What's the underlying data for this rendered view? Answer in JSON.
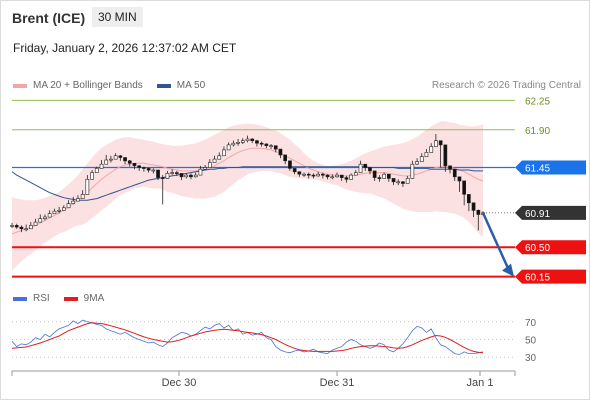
{
  "header": {
    "instrument": "Brent (ICE)",
    "timeframe": "30 MIN",
    "datetime": "Friday, January 2, 2026 12:37:02 AM CET",
    "credit": "Research © 2026 Trading Central"
  },
  "legend": {
    "ma20_label": "MA 20 + Bollinger Bands",
    "ma50_label": "MA 50",
    "rsi_label": "RSI",
    "rsi_ma_label": "9MA"
  },
  "colors": {
    "ma20": "#f4a6a6",
    "ma50": "#2f5597",
    "band_fill": "#fbe1e1",
    "resistance": "#1a73e8",
    "support": "#ee1111",
    "target_line": "#8bc34a",
    "up_candle": "#ffffff",
    "down_candle": "#111111",
    "arrow": "#2b5ea8",
    "rsi": "#4a6fd8",
    "rsi_ma": "#e02020"
  },
  "chart_data": [
    {
      "type": "candlestick",
      "x_ticks": [
        "Dec 30",
        "Dec 31",
        "Jan 1"
      ],
      "ylim": [
        60.05,
        62.35
      ],
      "current_price": 60.91,
      "levels": [
        {
          "label": "62.25",
          "value": 62.25,
          "kind": "target"
        },
        {
          "label": "61.90",
          "value": 61.9,
          "kind": "target"
        },
        {
          "label": "61.45",
          "value": 61.45,
          "kind": "pivot"
        },
        {
          "label": "60.91",
          "value": 60.91,
          "kind": "current"
        },
        {
          "label": "60.50",
          "value": 60.5,
          "kind": "support"
        },
        {
          "label": "60.15",
          "value": 60.15,
          "kind": "support"
        }
      ],
      "close": [
        60.76,
        60.74,
        60.72,
        60.72,
        60.76,
        60.8,
        60.84,
        60.86,
        60.9,
        60.93,
        60.94,
        60.97,
        61.02,
        61.05,
        61.08,
        61.13,
        61.31,
        61.39,
        61.44,
        61.49,
        61.54,
        61.55,
        61.59,
        61.57,
        61.53,
        61.5,
        61.47,
        61.45,
        61.44,
        61.42,
        61.42,
        61.33,
        61.32,
        61.38,
        61.39,
        61.38,
        61.34,
        61.36,
        61.34,
        61.36,
        61.43,
        61.45,
        61.51,
        61.55,
        61.59,
        61.66,
        61.72,
        61.74,
        61.75,
        61.77,
        61.79,
        61.77,
        61.74,
        61.73,
        61.71,
        61.71,
        61.67,
        61.6,
        61.53,
        61.44,
        61.4,
        61.37,
        61.37,
        61.36,
        61.35,
        61.37,
        61.36,
        61.34,
        61.34,
        61.36,
        61.33,
        61.31,
        61.36,
        61.39,
        61.49,
        61.45,
        61.41,
        61.33,
        61.32,
        61.37,
        61.32,
        61.28,
        61.28,
        61.26,
        61.32,
        61.49,
        61.52,
        61.58,
        61.63,
        61.7,
        61.77,
        61.72,
        61.47,
        61.43,
        61.34,
        61.29,
        61.13,
        61.03,
        60.94,
        60.89,
        60.91
      ],
      "high": [
        60.79,
        60.78,
        60.76,
        60.77,
        60.8,
        60.84,
        60.89,
        60.89,
        60.94,
        60.96,
        60.98,
        61.0,
        61.06,
        61.1,
        61.12,
        61.18,
        61.36,
        61.42,
        61.46,
        61.54,
        61.6,
        61.59,
        61.62,
        61.6,
        61.56,
        61.54,
        61.5,
        61.48,
        61.46,
        61.45,
        61.44,
        61.36,
        61.36,
        61.41,
        61.43,
        61.41,
        61.37,
        61.38,
        61.38,
        61.39,
        61.47,
        61.48,
        61.55,
        61.59,
        61.63,
        61.7,
        61.75,
        61.77,
        61.79,
        61.8,
        61.83,
        61.8,
        61.78,
        61.76,
        61.74,
        61.73,
        61.7,
        61.63,
        61.57,
        61.47,
        61.43,
        61.4,
        61.39,
        61.39,
        61.38,
        61.4,
        61.39,
        61.37,
        61.37,
        61.39,
        61.36,
        61.35,
        61.38,
        61.42,
        61.53,
        61.48,
        61.44,
        61.36,
        61.36,
        61.39,
        61.35,
        61.3,
        61.31,
        61.29,
        61.35,
        61.53,
        61.56,
        61.62,
        61.67,
        61.74,
        61.85,
        61.76,
        61.49,
        61.46,
        61.37,
        61.33,
        61.18,
        61.07,
        60.98,
        60.95,
        60.93
      ],
      "low": [
        60.73,
        60.72,
        60.68,
        60.69,
        60.73,
        60.77,
        60.81,
        60.82,
        60.87,
        60.9,
        60.9,
        60.94,
        60.98,
        61.01,
        61.05,
        61.09,
        61.27,
        61.35,
        61.4,
        61.45,
        61.5,
        61.51,
        61.55,
        61.53,
        61.49,
        61.46,
        61.43,
        61.41,
        61.4,
        61.39,
        61.38,
        61.3,
        61.01,
        61.35,
        61.36,
        61.35,
        61.3,
        61.32,
        61.31,
        61.33,
        61.39,
        61.42,
        61.48,
        61.51,
        61.55,
        61.62,
        61.68,
        61.7,
        61.71,
        61.73,
        61.75,
        61.74,
        61.7,
        61.7,
        61.68,
        61.67,
        61.63,
        61.56,
        61.49,
        61.41,
        61.37,
        61.34,
        61.34,
        61.32,
        61.32,
        61.34,
        61.32,
        61.31,
        61.31,
        61.33,
        61.29,
        61.27,
        61.32,
        61.36,
        61.45,
        61.41,
        61.37,
        61.29,
        61.28,
        61.33,
        61.28,
        61.24,
        61.24,
        61.22,
        61.27,
        61.45,
        61.48,
        61.54,
        61.59,
        61.66,
        61.72,
        61.45,
        61.4,
        61.38,
        61.29,
        61.16,
        61.0,
        60.93,
        60.86,
        60.7,
        60.88
      ],
      "ma20": [
        60.66,
        60.68,
        60.7,
        60.72,
        60.74,
        60.76,
        60.79,
        60.82,
        60.85,
        60.88,
        60.91,
        60.94,
        60.98,
        61.02,
        61.06,
        61.1,
        61.15,
        61.21,
        61.26,
        61.31,
        61.35,
        61.39,
        61.43,
        61.46,
        61.48,
        61.49,
        61.5,
        61.5,
        61.5,
        61.49,
        61.48,
        61.47,
        61.46,
        61.44,
        61.43,
        61.42,
        61.41,
        61.41,
        61.41,
        61.41,
        61.42,
        61.43,
        61.45,
        61.47,
        61.5,
        61.53,
        61.57,
        61.6,
        61.63,
        61.65,
        61.67,
        61.68,
        61.68,
        61.68,
        61.67,
        61.66,
        61.64,
        61.62,
        61.59,
        61.56,
        61.53,
        61.5,
        61.47,
        61.44,
        61.42,
        61.4,
        61.38,
        61.37,
        61.36,
        61.36,
        61.35,
        61.35,
        61.35,
        61.36,
        61.37,
        61.38,
        61.39,
        61.39,
        61.39,
        61.39,
        61.38,
        61.37,
        61.36,
        61.35,
        61.35,
        61.36,
        61.37,
        61.39,
        61.41,
        61.43,
        61.45,
        61.46,
        61.46,
        61.45,
        61.44,
        61.42,
        61.4,
        61.37,
        61.34,
        61.31,
        61.29
      ],
      "upper_band": [
        61.1,
        61.08,
        61.07,
        61.06,
        61.06,
        61.06,
        61.07,
        61.09,
        61.11,
        61.13,
        61.16,
        61.2,
        61.25,
        61.3,
        61.36,
        61.43,
        61.5,
        61.57,
        61.63,
        61.68,
        61.72,
        61.75,
        61.78,
        61.8,
        61.81,
        61.81,
        61.8,
        61.79,
        61.78,
        61.77,
        61.76,
        61.74,
        61.73,
        61.72,
        61.71,
        61.71,
        61.71,
        61.72,
        61.73,
        61.74,
        61.76,
        61.78,
        61.81,
        61.84,
        61.87,
        61.9,
        61.93,
        61.95,
        61.96,
        61.97,
        61.97,
        61.97,
        61.96,
        61.95,
        61.93,
        61.91,
        61.89,
        61.86,
        61.82,
        61.78,
        61.73,
        61.68,
        61.62,
        61.57,
        61.53,
        61.5,
        61.48,
        61.47,
        61.47,
        61.48,
        61.49,
        61.51,
        61.53,
        61.56,
        61.59,
        61.62,
        61.64,
        61.66,
        61.68,
        61.7,
        61.71,
        61.72,
        61.73,
        61.74,
        61.76,
        61.79,
        61.82,
        61.86,
        61.9,
        61.94,
        61.97,
        62.0,
        62.0,
        61.99,
        61.98,
        61.96,
        61.95,
        61.94,
        61.94,
        61.95,
        61.96
      ],
      "lower_band": [
        60.22,
        60.28,
        60.33,
        60.38,
        60.42,
        60.46,
        60.51,
        60.55,
        60.59,
        60.63,
        60.66,
        60.68,
        60.71,
        60.74,
        60.76,
        60.77,
        60.8,
        60.85,
        60.89,
        60.94,
        60.98,
        61.03,
        61.08,
        61.12,
        61.15,
        61.17,
        61.2,
        61.21,
        61.22,
        61.21,
        61.2,
        61.2,
        61.19,
        61.16,
        61.15,
        61.13,
        61.11,
        61.1,
        61.09,
        61.08,
        61.08,
        61.08,
        61.09,
        61.1,
        61.13,
        61.16,
        61.21,
        61.25,
        61.3,
        61.33,
        61.37,
        61.39,
        61.4,
        61.41,
        61.41,
        61.41,
        61.39,
        61.38,
        61.36,
        61.34,
        61.33,
        61.32,
        61.32,
        61.31,
        61.31,
        61.3,
        61.28,
        61.27,
        61.25,
        61.24,
        61.21,
        61.19,
        61.17,
        61.16,
        61.15,
        61.14,
        61.14,
        61.12,
        61.1,
        61.08,
        61.05,
        61.02,
        60.99,
        60.96,
        60.94,
        60.93,
        60.92,
        60.92,
        60.92,
        60.92,
        60.93,
        60.92,
        60.92,
        60.91,
        60.9,
        60.88,
        60.85,
        60.8,
        60.74,
        60.67,
        60.62
      ],
      "ma50": [
        61.4,
        61.36,
        61.33,
        61.3,
        61.27,
        61.24,
        61.21,
        61.18,
        61.15,
        61.13,
        61.11,
        61.09,
        61.08,
        61.07,
        61.06,
        61.06,
        61.06,
        61.07,
        61.08,
        61.1,
        61.12,
        61.14,
        61.16,
        61.18,
        61.2,
        61.22,
        61.24,
        61.26,
        61.28,
        61.3,
        61.31,
        61.32,
        61.33,
        61.34,
        61.35,
        61.36,
        61.37,
        61.38,
        61.39,
        61.4,
        61.41,
        61.42,
        61.43,
        61.43,
        61.44,
        61.44,
        61.45,
        61.45,
        61.45,
        61.46,
        61.46,
        61.46,
        61.46,
        61.46,
        61.46,
        61.46,
        61.46,
        61.46,
        61.46,
        61.46,
        61.46,
        61.46,
        61.46,
        61.46,
        61.46,
        61.46,
        61.46,
        61.46,
        61.46,
        61.46,
        61.46,
        61.46,
        61.46,
        61.46,
        61.46,
        61.46,
        61.45,
        61.45,
        61.45,
        61.45,
        61.45,
        61.45,
        61.44,
        61.44,
        61.44,
        61.44,
        61.44,
        61.44,
        61.44,
        61.43,
        61.43,
        61.43,
        61.43,
        61.43,
        61.43,
        61.42,
        61.42,
        61.42,
        61.41,
        61.41,
        61.41
      ]
    },
    {
      "type": "line",
      "name": "RSI",
      "y_ticks": [
        "70",
        "50",
        "30"
      ],
      "ylim": [
        20,
        80
      ],
      "guides": [
        70,
        50,
        30
      ],
      "series": [
        {
          "name": "RSI",
          "values": [
            48,
            42,
            45,
            44,
            47,
            52,
            50,
            56,
            53,
            58,
            62,
            64,
            66,
            71,
            68,
            72,
            70,
            69,
            67,
            66,
            62,
            60,
            58,
            56,
            58,
            55,
            52,
            50,
            48,
            46,
            47,
            44,
            42,
            46,
            52,
            55,
            58,
            57,
            54,
            56,
            60,
            64,
            62,
            66,
            68,
            63,
            66,
            60,
            62,
            56,
            58,
            55,
            56,
            58,
            52,
            50,
            42,
            38,
            36,
            35,
            37,
            38,
            36,
            37,
            39,
            36,
            35,
            34,
            38,
            40,
            42,
            47,
            50,
            48,
            44,
            42,
            40,
            42,
            46,
            44,
            38,
            36,
            40,
            45,
            52,
            60,
            65,
            63,
            58,
            62,
            52,
            44,
            42,
            38,
            34,
            33,
            36,
            34,
            34,
            35,
            36
          ]
        },
        {
          "name": "9MA",
          "values": [
            40,
            40.5,
            41,
            41.5,
            43,
            44.5,
            46,
            48,
            50,
            52,
            54,
            57,
            60,
            62,
            64,
            66,
            68,
            69,
            68.5,
            68,
            67,
            65.5,
            64,
            62.5,
            61,
            59,
            57,
            55,
            53,
            51.5,
            50,
            49,
            48,
            47,
            47.5,
            48.5,
            50,
            52,
            54,
            55.5,
            57,
            58.5,
            59.5,
            60.5,
            61,
            61.5,
            61,
            60.5,
            60,
            59,
            58,
            57.5,
            56.5,
            55.5,
            54,
            52,
            50,
            47,
            44.5,
            42,
            40,
            38.5,
            37.5,
            37,
            36.5,
            36.5,
            36.5,
            36.5,
            36.5,
            37,
            37.5,
            38.5,
            40,
            41,
            42,
            42.5,
            43,
            43,
            42.5,
            42,
            41.5,
            40.5,
            40,
            40.5,
            42,
            44,
            46.5,
            49,
            51,
            53,
            54.5,
            54,
            52.5,
            50,
            47,
            44,
            41,
            38.5,
            36.5,
            35.5,
            35
          ]
        }
      ]
    }
  ]
}
